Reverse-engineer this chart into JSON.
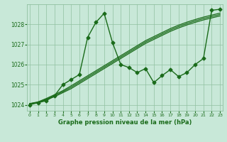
{
  "xlabel": "Graphe pression niveau de la mer (hPa)",
  "bg_color": "#c8e8d8",
  "grid_color": "#90c0a0",
  "line_color": "#1a6b1a",
  "xlim": [
    -0.3,
    23.3
  ],
  "ylim": [
    1023.7,
    1029.0
  ],
  "yticks": [
    1024,
    1025,
    1026,
    1027,
    1028
  ],
  "xticks": [
    0,
    1,
    2,
    3,
    4,
    5,
    6,
    7,
    8,
    9,
    10,
    11,
    12,
    13,
    14,
    15,
    16,
    17,
    18,
    19,
    20,
    21,
    22,
    23
  ],
  "trend1": [
    1024.05,
    1024.1,
    1024.25,
    1024.4,
    1024.6,
    1024.8,
    1025.05,
    1025.3,
    1025.55,
    1025.8,
    1026.05,
    1026.3,
    1026.55,
    1026.8,
    1027.05,
    1027.25,
    1027.45,
    1027.65,
    1027.82,
    1027.97,
    1028.1,
    1028.22,
    1028.32,
    1028.42
  ],
  "trend2": [
    1024.05,
    1024.12,
    1024.28,
    1024.45,
    1024.65,
    1024.87,
    1025.12,
    1025.37,
    1025.62,
    1025.87,
    1026.12,
    1026.37,
    1026.62,
    1026.87,
    1027.12,
    1027.32,
    1027.52,
    1027.72,
    1027.89,
    1028.04,
    1028.17,
    1028.29,
    1028.39,
    1028.49
  ],
  "trend3": [
    1024.06,
    1024.14,
    1024.31,
    1024.5,
    1024.7,
    1024.94,
    1025.19,
    1025.44,
    1025.69,
    1025.94,
    1026.19,
    1026.44,
    1026.69,
    1026.94,
    1027.19,
    1027.39,
    1027.59,
    1027.79,
    1027.96,
    1028.11,
    1028.24,
    1028.36,
    1028.46,
    1028.56
  ],
  "zigzag": [
    1024.0,
    1024.1,
    1024.2,
    1024.45,
    1025.0,
    1025.25,
    1025.5,
    1027.35,
    1028.1,
    1028.55,
    1027.1,
    1026.0,
    1025.85,
    1025.6,
    1025.8,
    1025.1,
    1025.45,
    1025.75,
    1025.4,
    1025.6,
    1026.0,
    1026.3,
    1028.7,
    1028.75
  ]
}
